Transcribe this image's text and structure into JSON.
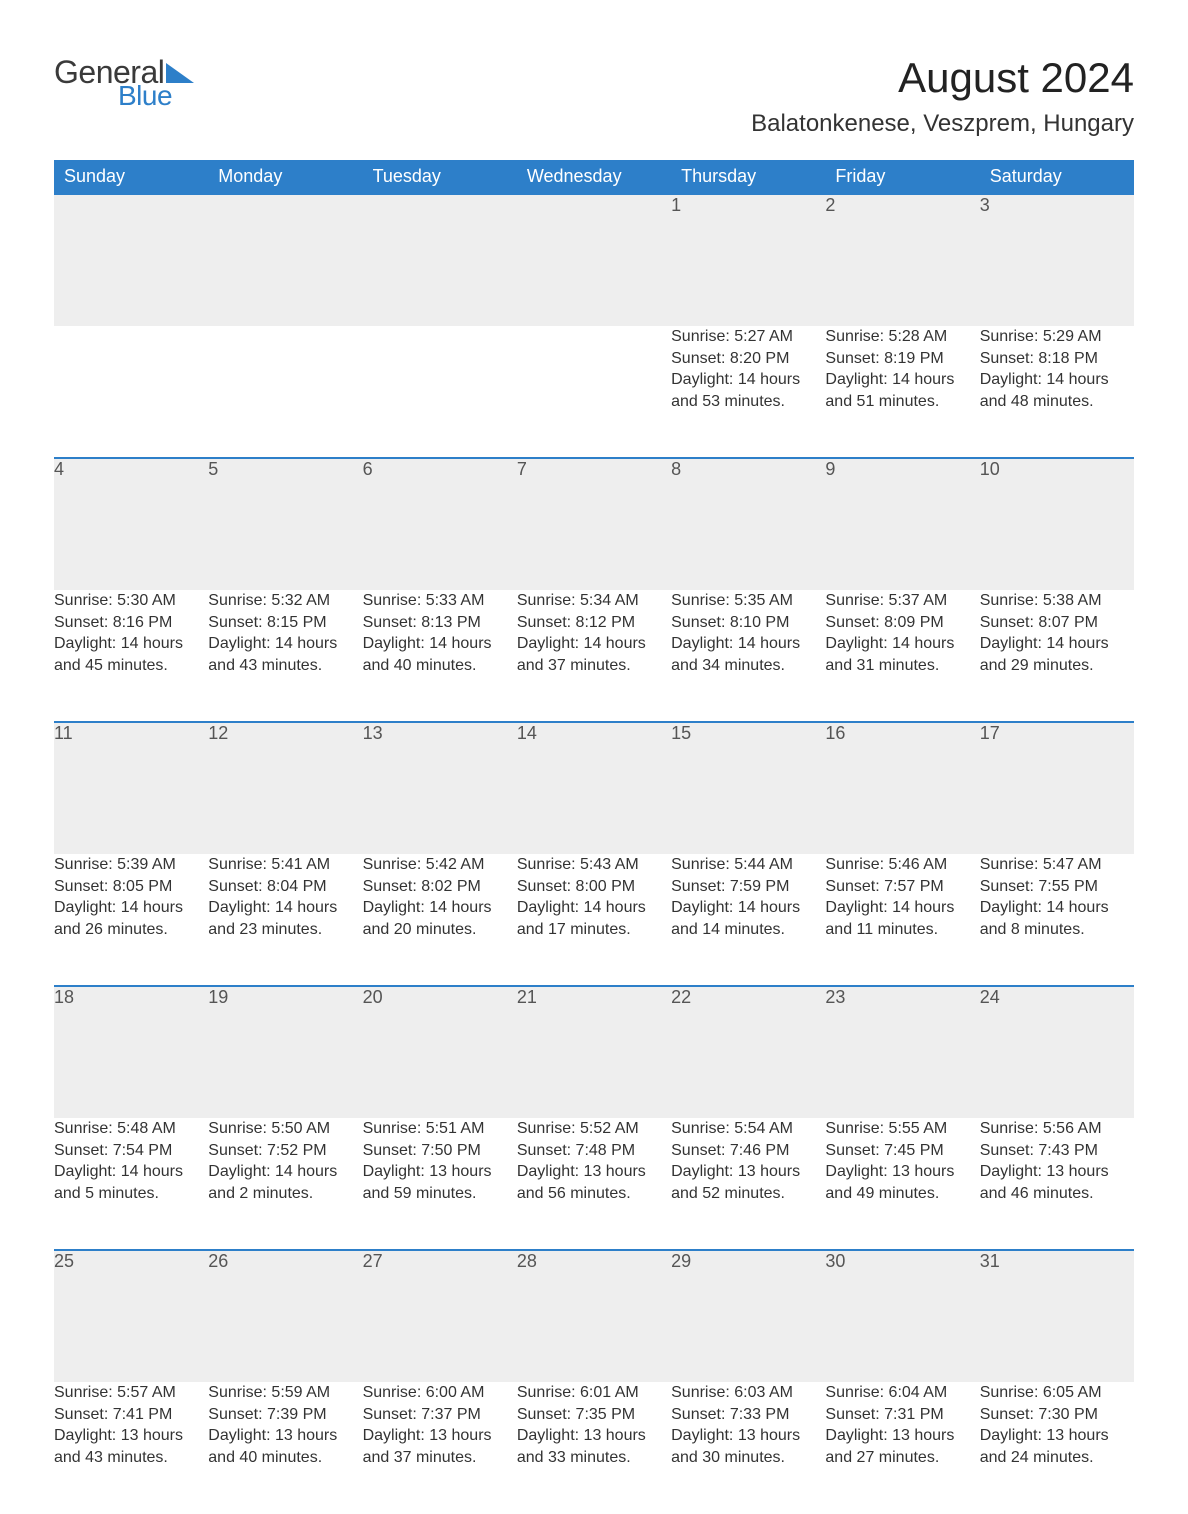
{
  "logo": {
    "word1": "General",
    "word2": "Blue",
    "word1_color": "#3a3a3a",
    "word2_color": "#2d7fc9",
    "triangle_color": "#2d7fc9"
  },
  "title": "August 2024",
  "location": "Balatonkenese, Veszprem, Hungary",
  "colors": {
    "header_bg": "#2d7fc9",
    "header_text": "#ffffff",
    "daynum_bg": "#eeeeee",
    "daynum_border": "#2d7fc9",
    "body_text": "#333333",
    "daynum_text": "#555555",
    "page_bg": "#ffffff"
  },
  "fonts": {
    "title_size": 42,
    "location_size": 24,
    "header_size": 18,
    "daynum_size": 18,
    "detail_size": 16
  },
  "dow": [
    "Sunday",
    "Monday",
    "Tuesday",
    "Wednesday",
    "Thursday",
    "Friday",
    "Saturday"
  ],
  "weeks": [
    [
      null,
      null,
      null,
      null,
      {
        "n": "1",
        "sr": "Sunrise: 5:27 AM",
        "ss": "Sunset: 8:20 PM",
        "dl": "Daylight: 14 hours and 53 minutes."
      },
      {
        "n": "2",
        "sr": "Sunrise: 5:28 AM",
        "ss": "Sunset: 8:19 PM",
        "dl": "Daylight: 14 hours and 51 minutes."
      },
      {
        "n": "3",
        "sr": "Sunrise: 5:29 AM",
        "ss": "Sunset: 8:18 PM",
        "dl": "Daylight: 14 hours and 48 minutes."
      }
    ],
    [
      {
        "n": "4",
        "sr": "Sunrise: 5:30 AM",
        "ss": "Sunset: 8:16 PM",
        "dl": "Daylight: 14 hours and 45 minutes."
      },
      {
        "n": "5",
        "sr": "Sunrise: 5:32 AM",
        "ss": "Sunset: 8:15 PM",
        "dl": "Daylight: 14 hours and 43 minutes."
      },
      {
        "n": "6",
        "sr": "Sunrise: 5:33 AM",
        "ss": "Sunset: 8:13 PM",
        "dl": "Daylight: 14 hours and 40 minutes."
      },
      {
        "n": "7",
        "sr": "Sunrise: 5:34 AM",
        "ss": "Sunset: 8:12 PM",
        "dl": "Daylight: 14 hours and 37 minutes."
      },
      {
        "n": "8",
        "sr": "Sunrise: 5:35 AM",
        "ss": "Sunset: 8:10 PM",
        "dl": "Daylight: 14 hours and 34 minutes."
      },
      {
        "n": "9",
        "sr": "Sunrise: 5:37 AM",
        "ss": "Sunset: 8:09 PM",
        "dl": "Daylight: 14 hours and 31 minutes."
      },
      {
        "n": "10",
        "sr": "Sunrise: 5:38 AM",
        "ss": "Sunset: 8:07 PM",
        "dl": "Daylight: 14 hours and 29 minutes."
      }
    ],
    [
      {
        "n": "11",
        "sr": "Sunrise: 5:39 AM",
        "ss": "Sunset: 8:05 PM",
        "dl": "Daylight: 14 hours and 26 minutes."
      },
      {
        "n": "12",
        "sr": "Sunrise: 5:41 AM",
        "ss": "Sunset: 8:04 PM",
        "dl": "Daylight: 14 hours and 23 minutes."
      },
      {
        "n": "13",
        "sr": "Sunrise: 5:42 AM",
        "ss": "Sunset: 8:02 PM",
        "dl": "Daylight: 14 hours and 20 minutes."
      },
      {
        "n": "14",
        "sr": "Sunrise: 5:43 AM",
        "ss": "Sunset: 8:00 PM",
        "dl": "Daylight: 14 hours and 17 minutes."
      },
      {
        "n": "15",
        "sr": "Sunrise: 5:44 AM",
        "ss": "Sunset: 7:59 PM",
        "dl": "Daylight: 14 hours and 14 minutes."
      },
      {
        "n": "16",
        "sr": "Sunrise: 5:46 AM",
        "ss": "Sunset: 7:57 PM",
        "dl": "Daylight: 14 hours and 11 minutes."
      },
      {
        "n": "17",
        "sr": "Sunrise: 5:47 AM",
        "ss": "Sunset: 7:55 PM",
        "dl": "Daylight: 14 hours and 8 minutes."
      }
    ],
    [
      {
        "n": "18",
        "sr": "Sunrise: 5:48 AM",
        "ss": "Sunset: 7:54 PM",
        "dl": "Daylight: 14 hours and 5 minutes."
      },
      {
        "n": "19",
        "sr": "Sunrise: 5:50 AM",
        "ss": "Sunset: 7:52 PM",
        "dl": "Daylight: 14 hours and 2 minutes."
      },
      {
        "n": "20",
        "sr": "Sunrise: 5:51 AM",
        "ss": "Sunset: 7:50 PM",
        "dl": "Daylight: 13 hours and 59 minutes."
      },
      {
        "n": "21",
        "sr": "Sunrise: 5:52 AM",
        "ss": "Sunset: 7:48 PM",
        "dl": "Daylight: 13 hours and 56 minutes."
      },
      {
        "n": "22",
        "sr": "Sunrise: 5:54 AM",
        "ss": "Sunset: 7:46 PM",
        "dl": "Daylight: 13 hours and 52 minutes."
      },
      {
        "n": "23",
        "sr": "Sunrise: 5:55 AM",
        "ss": "Sunset: 7:45 PM",
        "dl": "Daylight: 13 hours and 49 minutes."
      },
      {
        "n": "24",
        "sr": "Sunrise: 5:56 AM",
        "ss": "Sunset: 7:43 PM",
        "dl": "Daylight: 13 hours and 46 minutes."
      }
    ],
    [
      {
        "n": "25",
        "sr": "Sunrise: 5:57 AM",
        "ss": "Sunset: 7:41 PM",
        "dl": "Daylight: 13 hours and 43 minutes."
      },
      {
        "n": "26",
        "sr": "Sunrise: 5:59 AM",
        "ss": "Sunset: 7:39 PM",
        "dl": "Daylight: 13 hours and 40 minutes."
      },
      {
        "n": "27",
        "sr": "Sunrise: 6:00 AM",
        "ss": "Sunset: 7:37 PM",
        "dl": "Daylight: 13 hours and 37 minutes."
      },
      {
        "n": "28",
        "sr": "Sunrise: 6:01 AM",
        "ss": "Sunset: 7:35 PM",
        "dl": "Daylight: 13 hours and 33 minutes."
      },
      {
        "n": "29",
        "sr": "Sunrise: 6:03 AM",
        "ss": "Sunset: 7:33 PM",
        "dl": "Daylight: 13 hours and 30 minutes."
      },
      {
        "n": "30",
        "sr": "Sunrise: 6:04 AM",
        "ss": "Sunset: 7:31 PM",
        "dl": "Daylight: 13 hours and 27 minutes."
      },
      {
        "n": "31",
        "sr": "Sunrise: 6:05 AM",
        "ss": "Sunset: 7:30 PM",
        "dl": "Daylight: 13 hours and 24 minutes."
      }
    ]
  ]
}
